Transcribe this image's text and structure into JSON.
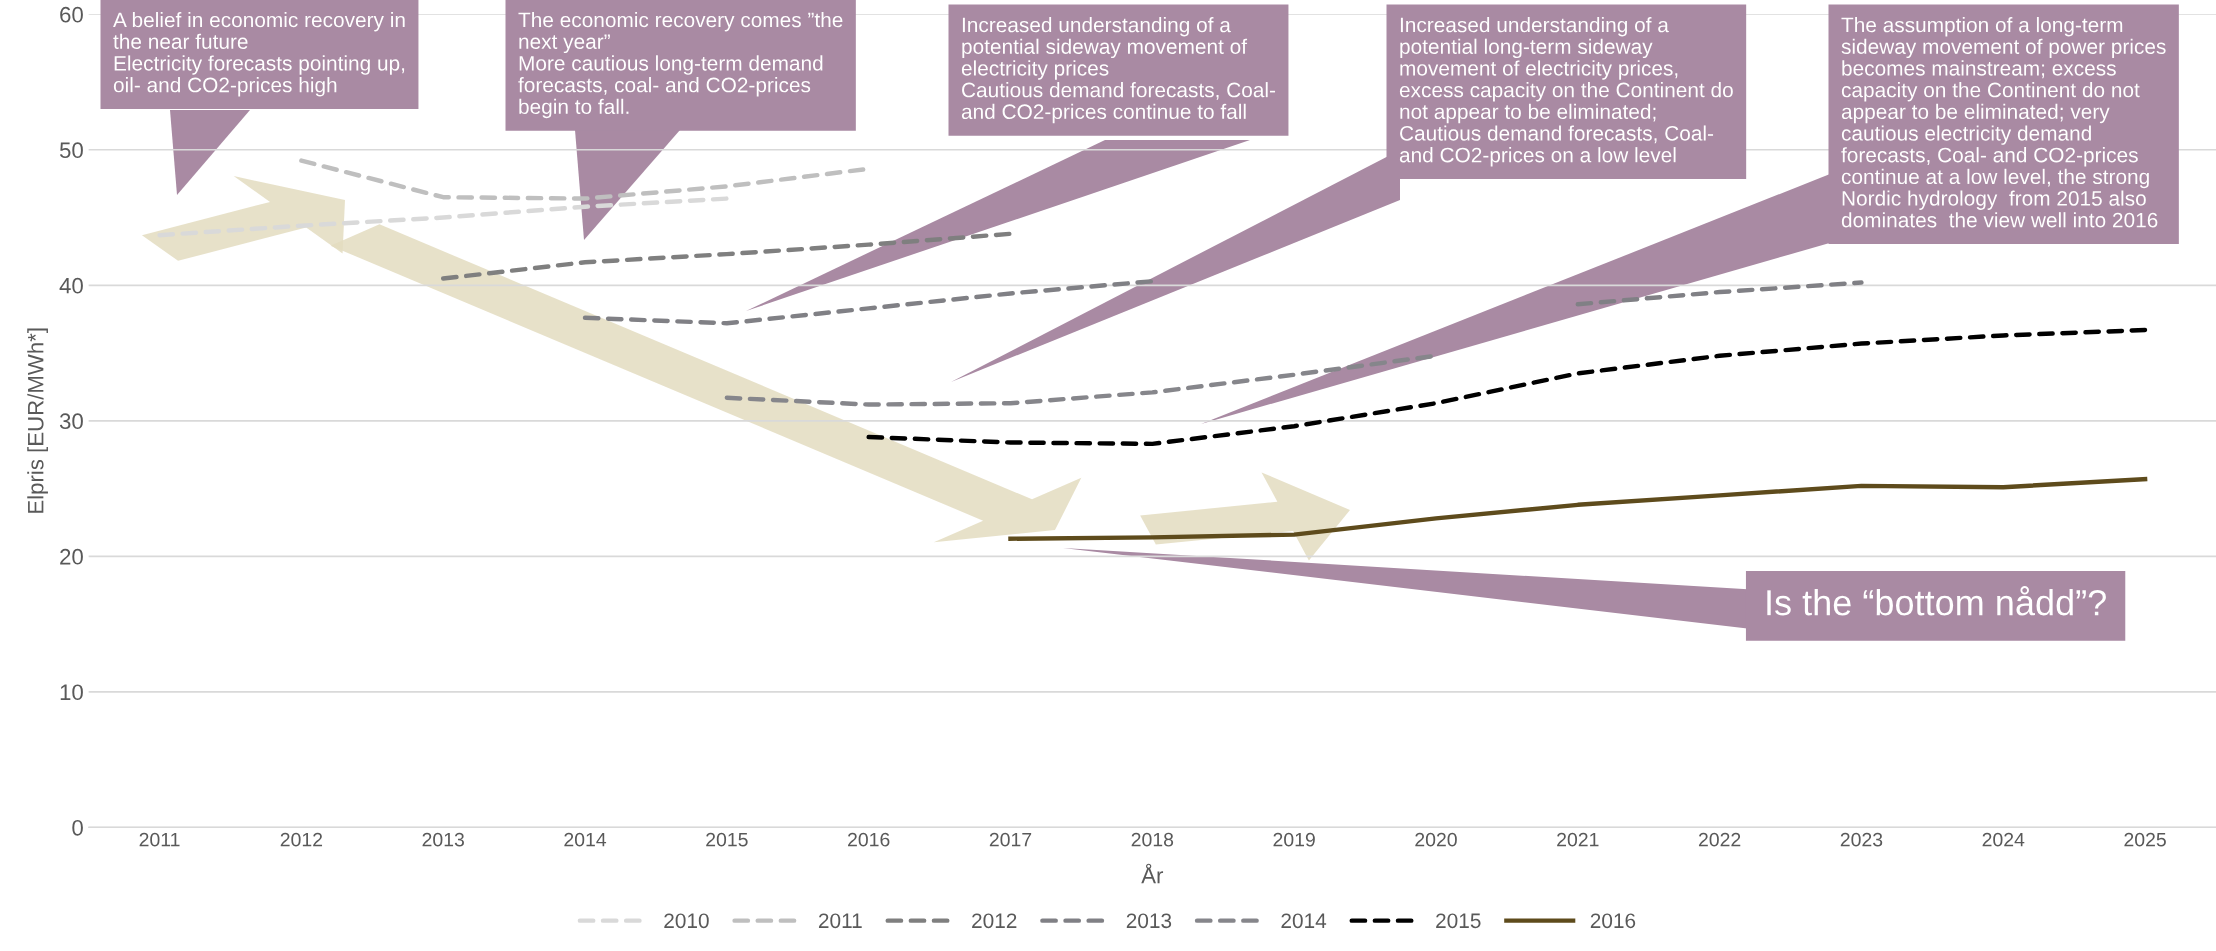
{
  "chart_data": {
    "type": "line",
    "xlabel": "År",
    "ylabel": "Elpris [EUR/MWh*]",
    "categories": [
      "2011",
      "2012",
      "2013",
      "2014",
      "2015",
      "2016",
      "2017",
      "2018",
      "2019",
      "2020",
      "2021",
      "2022",
      "2023",
      "2024",
      "2025"
    ],
    "ylim": [
      0,
      60
    ],
    "yticks": [
      0,
      10,
      20,
      30,
      40,
      50,
      60
    ],
    "grid": "y",
    "legend": "bottom",
    "series": [
      {
        "name": "2010",
        "color": "#d9d9d9",
        "line_style": "dashed",
        "values": [
          43.7,
          44.4,
          45.0,
          45.8,
          46.4,
          null,
          null,
          null,
          null,
          null,
          null,
          null,
          null,
          null,
          null
        ]
      },
      {
        "name": "2011",
        "color": "#bfbfbf",
        "line_style": "dashed",
        "values": [
          null,
          49.2,
          46.5,
          46.4,
          47.3,
          48.6,
          null,
          null,
          null,
          null,
          null,
          null,
          null,
          null,
          null
        ]
      },
      {
        "name": "2012",
        "color": "#7f7f7f",
        "line_style": "dashed",
        "values": [
          null,
          null,
          40.5,
          41.7,
          42.3,
          43.0,
          43.8,
          null,
          null,
          null,
          null,
          null,
          null,
          null,
          null
        ]
      },
      {
        "name": "2013",
        "color": "#808085",
        "line_style": "dashed",
        "values": [
          null,
          null,
          null,
          37.6,
          37.2,
          38.3,
          39.4,
          40.3,
          null,
          null,
          38.6,
          39.5,
          40.2,
          null,
          null
        ]
      },
      {
        "name": "2014",
        "color": "#86868b",
        "line_style": "dashed",
        "values": [
          null,
          null,
          null,
          null,
          31.7,
          31.2,
          31.3,
          32.1,
          33.4,
          34.8,
          null,
          null,
          null,
          null,
          null
        ]
      },
      {
        "name": "2015",
        "color": "#000000",
        "line_style": "dashed",
        "values": [
          null,
          null,
          null,
          null,
          null,
          28.8,
          28.4,
          28.3,
          29.6,
          31.3,
          33.5,
          34.8,
          35.7,
          36.3,
          36.7
        ]
      },
      {
        "name": "2016",
        "color": "#5e4b1c",
        "line_style": "solid",
        "values": [
          null,
          null,
          null,
          null,
          null,
          null,
          21.3,
          21.4,
          21.6,
          22.8,
          23.8,
          24.5,
          25.2,
          25.1,
          25.7
        ]
      }
    ],
    "annotations": [
      "A belief in economic recovery in\nthe near future\nElectricity forecasts pointing up,\noil- and CO2-prices high",
      "The economic recovery comes ”the\nnext year”\nMore cautious long-term demand\nforecasts, coal- and CO2-prices\nbegin to fall.",
      "Increased understanding of a\npotential sideway movement of\nelectricity prices\nCautious demand forecasts, Coal-\nand CO2-prices continue to fall",
      "Increased understanding of a\npotential long-term sideway\nmovement of electricity prices,\nexcess capacity on the Continent do\nnot appear to be eliminated;\nCautious demand forecasts, Coal-\nand CO2-prices on a low level",
      "The assumption of a long-term\nsideway movement of power prices\nbecomes mainstream; excess\ncapacity on the Continent do not\nappear to be eliminated; very\ncautious electricity demand\nforecasts, Coal- and CO2-prices\ncontinue at a low level, the strong\nNordic hydrology  from 2015 also\ndominates  the view well into 2016",
      "Is the “bottom nådd”?"
    ]
  }
}
